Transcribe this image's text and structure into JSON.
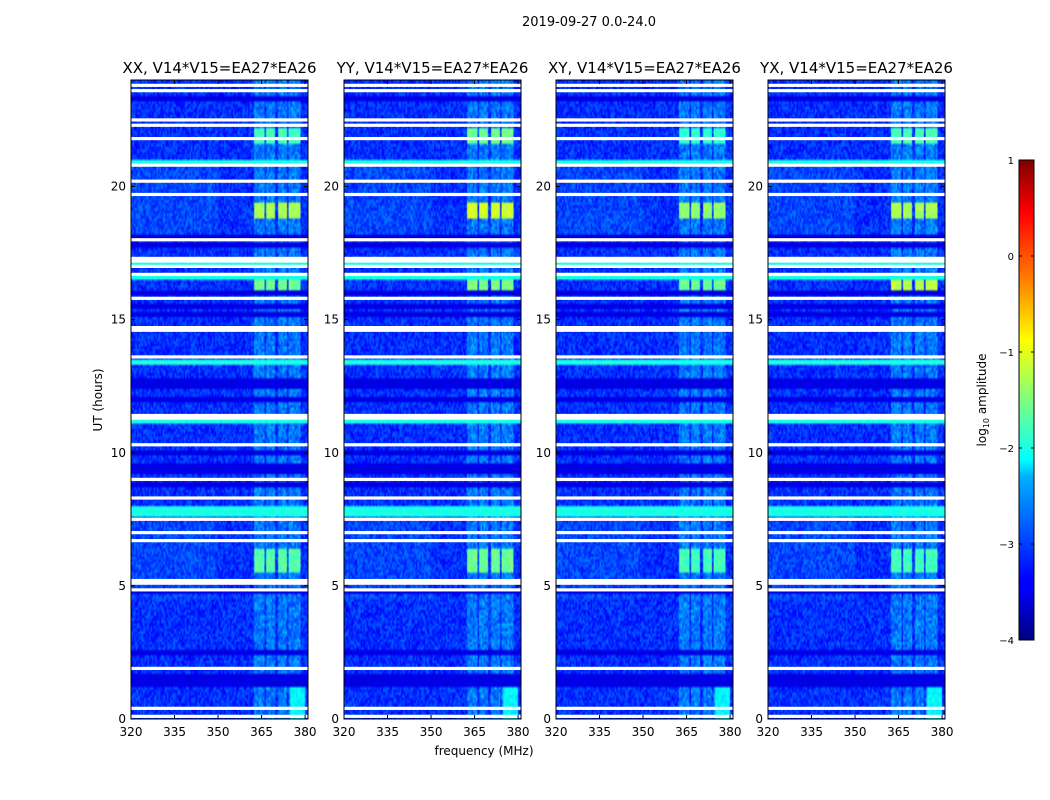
{
  "suptitle": "2019-09-27 0.0-24.0",
  "chart_data": [
    {
      "type": "heatmap",
      "title": "XX, V14*V15=EA27*EA26",
      "xlabel": "",
      "ylabel": "UT (hours)",
      "xlim": [
        320,
        381
      ],
      "ylim": [
        0,
        24
      ],
      "xticks": [
        "320",
        "335",
        "350",
        "365",
        "380"
      ],
      "yticks": [
        "0",
        "5",
        "10",
        "15",
        "20"
      ],
      "rfi_bands_mhz": [
        [
          362.5,
          366
        ],
        [
          366.5,
          369.5
        ],
        [
          370.5,
          374
        ],
        [
          374.5,
          378.5
        ]
      ],
      "bright_bursts": [
        {
          "t0": 5.5,
          "t1": 6.4,
          "level": -1.7
        },
        {
          "t0": 18.8,
          "t1": 19.4,
          "level": -1.3
        },
        {
          "t0": 21.6,
          "t1": 22.2,
          "level": -1.8
        },
        {
          "t0": 16.1,
          "t1": 16.5,
          "level": -1.6
        }
      ]
    },
    {
      "type": "heatmap",
      "title": "YY, V14*V15=EA27*EA26",
      "xlabel": "frequency (MHz)",
      "ylabel": "",
      "xlim": [
        320,
        381
      ],
      "ylim": [
        0,
        24
      ],
      "xticks": [
        "320",
        "335",
        "350",
        "365",
        "380"
      ],
      "yticks": [
        "0",
        "5",
        "10",
        "15",
        "20"
      ],
      "rfi_bands_mhz": [
        [
          362.5,
          366
        ],
        [
          366.5,
          369.5
        ],
        [
          370.5,
          374
        ],
        [
          374.5,
          378.5
        ]
      ],
      "bright_bursts": [
        {
          "t0": 5.5,
          "t1": 6.4,
          "level": -1.6
        },
        {
          "t0": 18.8,
          "t1": 19.4,
          "level": -1.1
        },
        {
          "t0": 21.6,
          "t1": 22.2,
          "level": -1.6
        },
        {
          "t0": 16.1,
          "t1": 16.5,
          "level": -1.5
        }
      ]
    },
    {
      "type": "heatmap",
      "title": "XY, V14*V15=EA27*EA26",
      "xlabel": "",
      "ylabel": "",
      "xlim": [
        320,
        381
      ],
      "ylim": [
        0,
        24
      ],
      "xticks": [
        "320",
        "335",
        "350",
        "365",
        "380"
      ],
      "yticks": [
        "0",
        "5",
        "10",
        "15",
        "20"
      ],
      "rfi_bands_mhz": [
        [
          362.5,
          366
        ],
        [
          366.5,
          369.5
        ],
        [
          370.5,
          374
        ],
        [
          374.5,
          378.5
        ]
      ],
      "bright_bursts": [
        {
          "t0": 5.5,
          "t1": 6.4,
          "level": -1.8
        },
        {
          "t0": 18.8,
          "t1": 19.4,
          "level": -1.4
        },
        {
          "t0": 21.6,
          "t1": 22.2,
          "level": -1.9
        },
        {
          "t0": 16.1,
          "t1": 16.5,
          "level": -1.6
        }
      ]
    },
    {
      "type": "heatmap",
      "title": "YX, V14*V15=EA27*EA26",
      "xlabel": "",
      "ylabel": "",
      "xlim": [
        320,
        381
      ],
      "ylim": [
        0,
        24
      ],
      "xticks": [
        "320",
        "335",
        "350",
        "365",
        "380"
      ],
      "yticks": [
        "0",
        "5",
        "10",
        "15",
        "20"
      ],
      "rfi_bands_mhz": [
        [
          362.5,
          366
        ],
        [
          366.5,
          369.5
        ],
        [
          370.5,
          374
        ],
        [
          374.5,
          378.5
        ]
      ],
      "bright_bursts": [
        {
          "t0": 5.5,
          "t1": 6.4,
          "level": -1.8
        },
        {
          "t0": 18.8,
          "t1": 19.4,
          "level": -1.3
        },
        {
          "t0": 21.6,
          "t1": 22.2,
          "level": -1.8
        },
        {
          "t0": 16.1,
          "t1": 16.5,
          "level": -1.2
        }
      ]
    }
  ],
  "shared": {
    "flagged_times_hours": [
      0.1,
      0.4,
      1.9,
      4.85,
      5.1,
      5.2,
      6.7,
      7.0,
      7.5,
      8.3,
      9.0,
      10.3,
      11.3,
      11.4,
      13.6,
      14.6,
      14.7,
      15.8,
      16.7,
      17.0,
      17.2,
      17.3,
      18.0,
      19.7,
      20.2,
      20.8,
      21.8,
      22.3,
      22.5,
      23.6,
      23.8
    ],
    "dark_times_hours": [
      1.3,
      1.5,
      1.6,
      2.5,
      4.8,
      8.8,
      9.3,
      9.5,
      10.0,
      12.0,
      12.5,
      12.7,
      15.2,
      15.5,
      16.0,
      17.8,
      18.1,
      23.3
    ],
    "cyan_times_hours": [
      7.7,
      7.9,
      11.2,
      13.4,
      16.6,
      17.1,
      20.9
    ]
  },
  "colorbar": {
    "label": "log10 amplitude",
    "label_base": "log",
    "label_sub": "10",
    "label_rest": " amplitude",
    "range": [
      -4,
      1
    ],
    "ticks": [
      "1",
      "0",
      "−1",
      "−2",
      "−3",
      "−4"
    ],
    "colormap": "jet",
    "jet_colors": [
      "#00007f",
      "#0000ff",
      "#007fff",
      "#00ffff",
      "#7fff7f",
      "#ffff00",
      "#ff7f00",
      "#ff0000",
      "#7f0000"
    ]
  }
}
